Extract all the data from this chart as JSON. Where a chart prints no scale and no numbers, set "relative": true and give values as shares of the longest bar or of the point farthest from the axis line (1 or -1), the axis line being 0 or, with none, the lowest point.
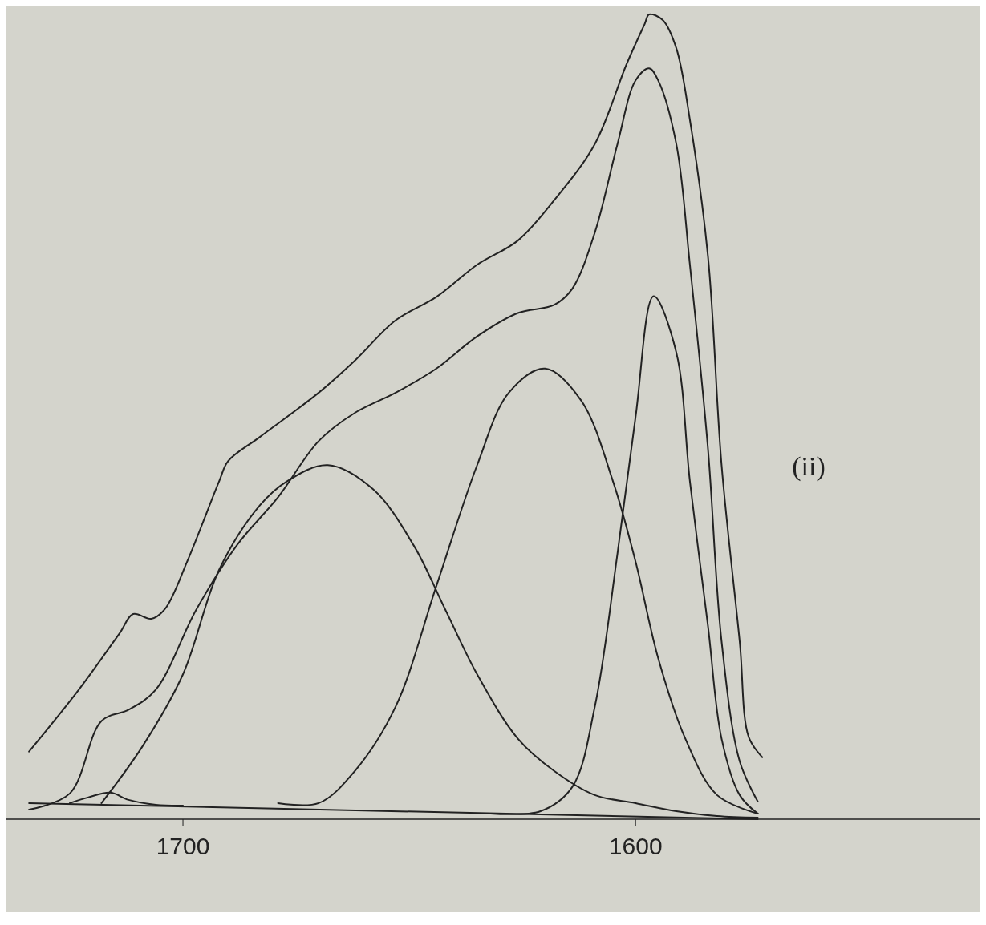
{
  "chart_data": {
    "type": "line",
    "relative": true,
    "xlim": [
      1739,
      1524
    ],
    "xticks": [
      1700,
      1600
    ],
    "grid": false,
    "marker": "none",
    "line_style": "solid",
    "annotations": [
      "(ii)"
    ],
    "series": [
      {
        "color": "#222222",
        "x": [
          1734,
          1723,
          1714,
          1711,
          1707,
          1704,
          1699,
          1692,
          1690,
          1683,
          1670,
          1662,
          1653,
          1644,
          1635,
          1626,
          1618,
          1609,
          1602,
          1598,
          1597,
          1594,
          1591,
          1588,
          1584,
          1581,
          1577,
          1575,
          1572
        ],
        "values": [
          0.084,
          0.161,
          0.231,
          0.255,
          0.249,
          0.261,
          0.321,
          0.42,
          0.445,
          0.475,
          0.53,
          0.57,
          0.62,
          0.649,
          0.689,
          0.719,
          0.769,
          0.839,
          0.938,
          0.988,
          1.0,
          0.993,
          0.958,
          0.869,
          0.699,
          0.44,
          0.221,
          0.102,
          0.077
        ]
      },
      {
        "color": "#222222",
        "x": [
          1734,
          1725,
          1718,
          1712,
          1706,
          1697,
          1688,
          1679,
          1670,
          1662,
          1653,
          1644,
          1635,
          1626,
          1618,
          1614,
          1609,
          1604,
          1600,
          1597,
          1595,
          1591,
          1588,
          1584,
          1581,
          1577,
          1573
        ],
        "values": [
          0.012,
          0.032,
          0.122,
          0.136,
          0.161,
          0.261,
          0.341,
          0.4,
          0.47,
          0.505,
          0.53,
          0.56,
          0.6,
          0.629,
          0.639,
          0.659,
          0.729,
          0.839,
          0.918,
          0.933,
          0.918,
          0.839,
          0.689,
          0.46,
          0.221,
          0.072,
          0.022
        ]
      },
      {
        "color": "#222222",
        "x": [
          1725,
          1721,
          1716,
          1712,
          1706,
          1700
        ],
        "values": [
          0.02,
          0.027,
          0.033,
          0.024,
          0.018,
          0.017
        ]
      },
      {
        "color": "#222222",
        "x": [
          1718,
          1709,
          1700,
          1692,
          1683,
          1677,
          1668,
          1658,
          1649,
          1642,
          1635,
          1626,
          1618,
          1609,
          1600,
          1591,
          1582,
          1573
        ],
        "values": [
          0.02,
          0.09,
          0.18,
          0.31,
          0.39,
          0.42,
          0.44,
          0.41,
          0.34,
          0.26,
          0.18,
          0.1,
          0.06,
          0.03,
          0.02,
          0.01,
          0.004,
          0.002
        ]
      },
      {
        "color": "#222222",
        "x": [
          1679,
          1670,
          1662,
          1653,
          1644,
          1635,
          1628,
          1620,
          1612,
          1605,
          1600,
          1595,
          1589,
          1582,
          1573
        ],
        "values": [
          0.02,
          0.02,
          0.06,
          0.14,
          0.29,
          0.44,
          0.53,
          0.56,
          0.52,
          0.42,
          0.32,
          0.2,
          0.1,
          0.03,
          0.007
        ]
      },
      {
        "color": "#222222",
        "x": [
          1632,
          1621,
          1614,
          1609,
          1604,
          1600,
          1596,
          1591,
          1588,
          1584,
          1581,
          1577,
          1573
        ],
        "values": [
          0.007,
          0.01,
          0.04,
          0.14,
          0.33,
          0.5,
          0.65,
          0.58,
          0.42,
          0.24,
          0.1,
          0.03,
          0.007
        ]
      },
      {
        "color": "#222222",
        "x": [
          1734,
          1573
        ],
        "values": [
          0.02,
          0.0
        ]
      }
    ]
  }
}
